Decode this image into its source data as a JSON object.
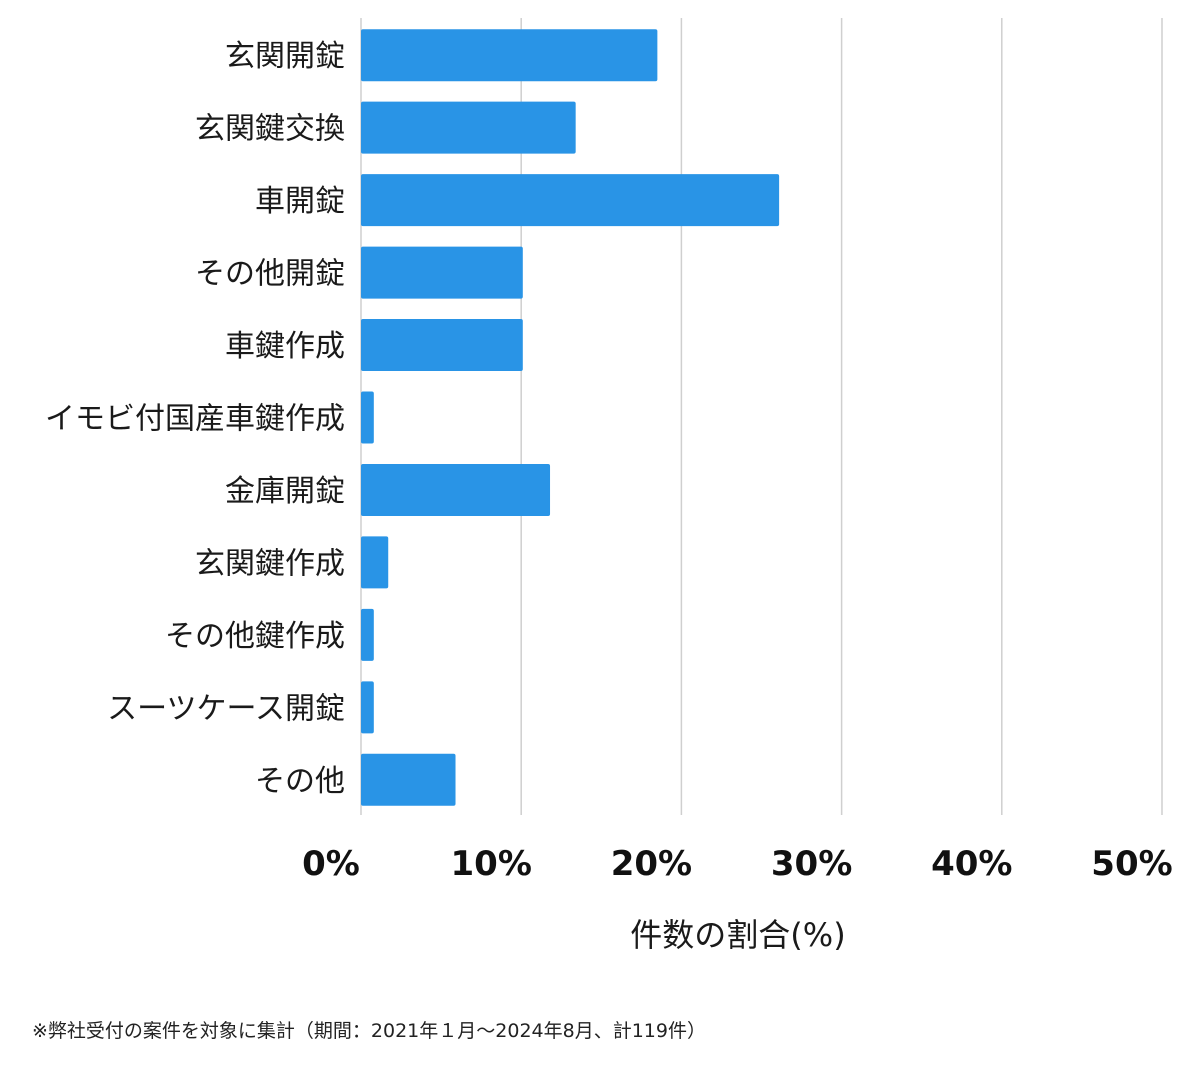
{
  "chart_data": {
    "type": "bar",
    "orientation": "horizontal",
    "categories": [
      "玄関開錠",
      "玄関鍵交換",
      "車開錠",
      "その他開錠",
      "車鍵作成",
      "イモビ付国産車鍵作成",
      "金庫開錠",
      "玄関鍵作成",
      "その他鍵作成",
      "スーツケース開錠",
      "その他"
    ],
    "values": [
      18.5,
      13.4,
      26.1,
      10.1,
      10.1,
      0.8,
      11.8,
      1.7,
      0.8,
      0.8,
      5.9
    ],
    "xlabel": "件数の割合(%)",
    "ylabel": "",
    "xlim": [
      0,
      50
    ],
    "ticks": [
      0,
      10,
      20,
      30,
      40,
      50
    ],
    "tick_labels": [
      "0%",
      "10%",
      "20%",
      "30%",
      "40%",
      "50%"
    ],
    "bar_color": "#2994e6",
    "grid": true
  },
  "footnote": "※弊社受付の案件を対象に集計（期間：2021年１月〜2024年8月、計119件）"
}
